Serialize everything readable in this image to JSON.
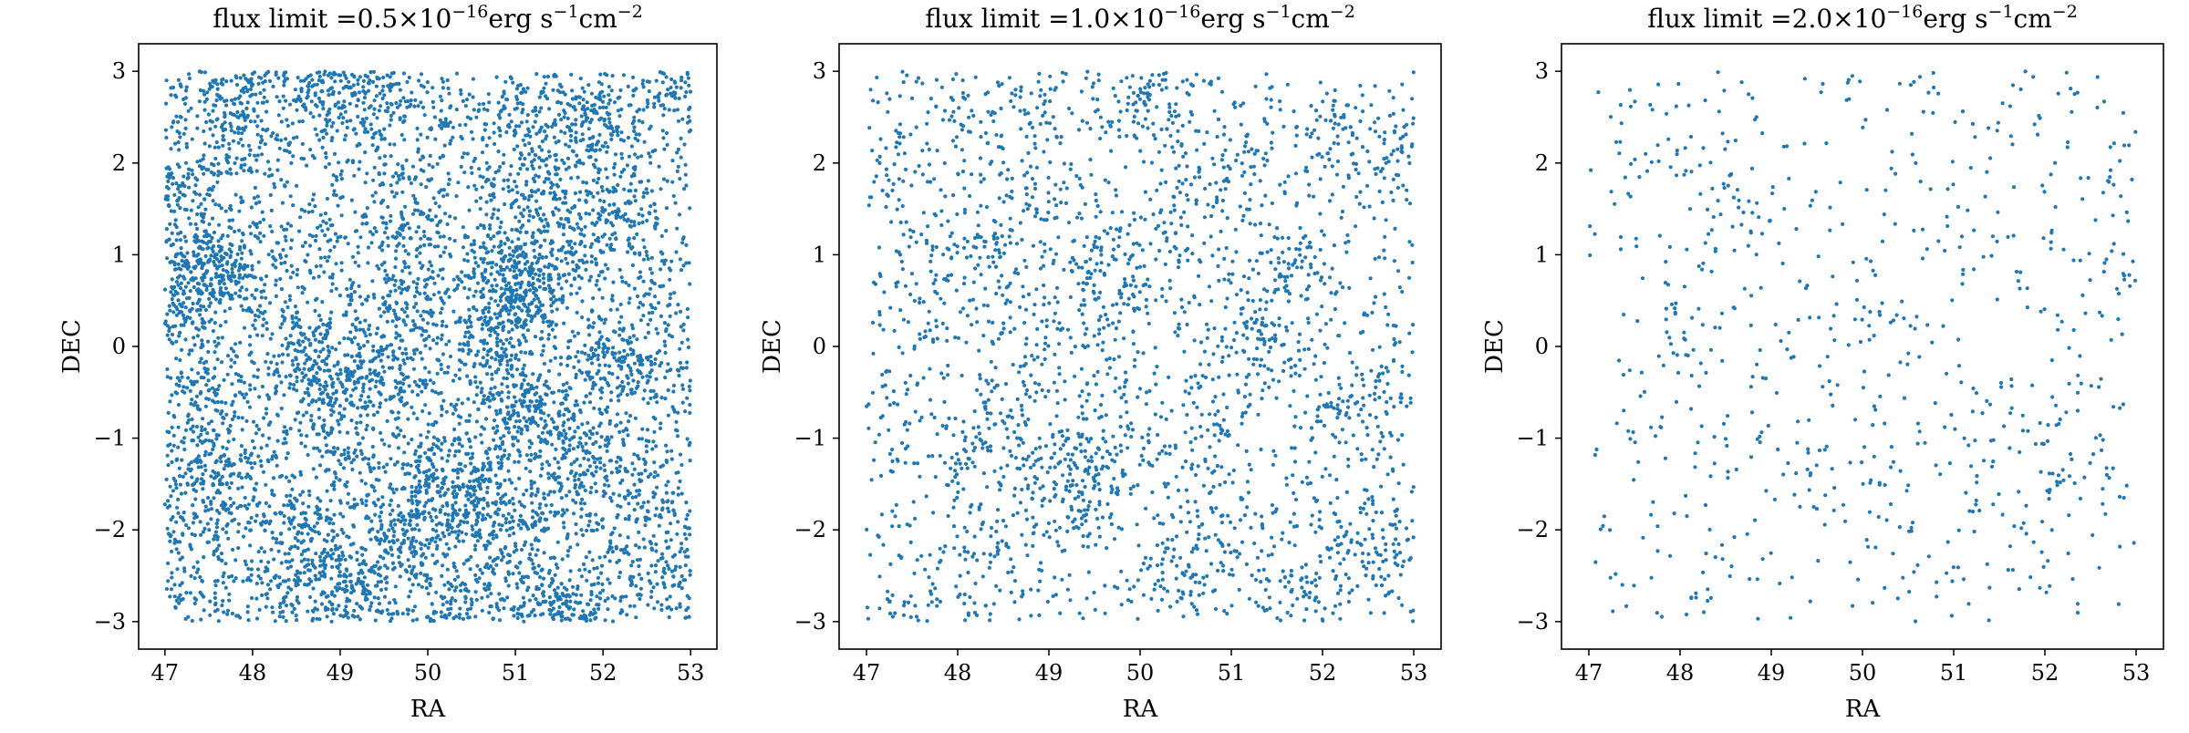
{
  "chart_data": [
    {
      "type": "scatter",
      "title": {
        "prefix": "flux limit =",
        "value": "0.5",
        "times": "×10",
        "exp": "−16",
        "unit1": "erg s",
        "unit_exp1": "−1",
        "unit2": "cm",
        "unit_exp2": "−2"
      },
      "xlabel": "RA",
      "ylabel": "DEC",
      "xlim": [
        46.7,
        53.3
      ],
      "ylim": [
        -3.3,
        3.3
      ],
      "xticks": [
        47,
        48,
        49,
        50,
        51,
        52,
        53
      ],
      "yticks": [
        -3,
        -2,
        -1,
        0,
        1,
        2,
        3
      ],
      "color": "#1f77b4",
      "grid": false,
      "point_region": {
        "ra": [
          47,
          53
        ],
        "dec": [
          -3,
          3
        ]
      },
      "point_count": 7200
    },
    {
      "type": "scatter",
      "title": {
        "prefix": "flux limit =",
        "value": "1.0",
        "times": "×10",
        "exp": "−16",
        "unit1": "erg s",
        "unit_exp1": "−1",
        "unit2": "cm",
        "unit_exp2": "−2"
      },
      "xlabel": "RA",
      "ylabel": "DEC",
      "xlim": [
        46.7,
        53.3
      ],
      "ylim": [
        -3.3,
        3.3
      ],
      "xticks": [
        47,
        48,
        49,
        50,
        51,
        52,
        53
      ],
      "yticks": [
        -3,
        -2,
        -1,
        0,
        1,
        2,
        3
      ],
      "color": "#1f77b4",
      "grid": false,
      "point_region": {
        "ra": [
          47,
          53
        ],
        "dec": [
          -3,
          3
        ]
      },
      "point_count": 2800
    },
    {
      "type": "scatter",
      "title": {
        "prefix": "flux limit =",
        "value": "2.0",
        "times": "×10",
        "exp": "−16",
        "unit1": "erg s",
        "unit_exp1": "−1",
        "unit2": "cm",
        "unit_exp2": "−2"
      },
      "xlabel": "RA",
      "ylabel": "DEC",
      "xlim": [
        46.7,
        53.3
      ],
      "ylim": [
        -3.3,
        3.3
      ],
      "xticks": [
        47,
        48,
        49,
        50,
        51,
        52,
        53
      ],
      "yticks": [
        -3,
        -2,
        -1,
        0,
        1,
        2,
        3
      ],
      "color": "#1f77b4",
      "grid": false,
      "point_region": {
        "ra": [
          47,
          53
        ],
        "dec": [
          -3,
          3
        ]
      },
      "point_count": 750
    }
  ]
}
